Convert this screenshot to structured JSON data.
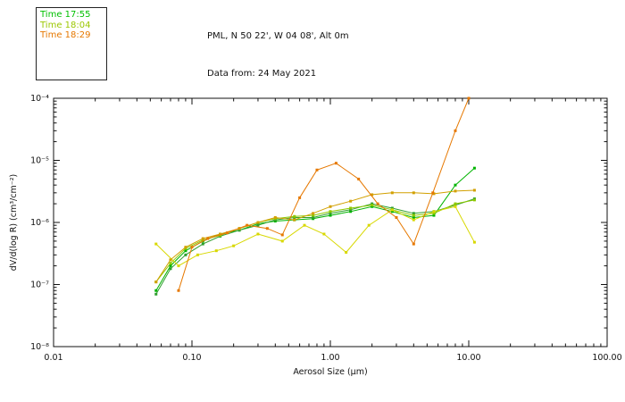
{
  "chart_data": {
    "type": "line",
    "title": "PML, N 50 22', W 04 08', Alt 0m",
    "subtitle": "Data from: 24 May 2021",
    "xlabel": "Aerosol Size (μm)",
    "ylabel": "dV/d(log R) (cm³/cm⁻²)",
    "x_scale": "log",
    "y_scale": "log",
    "xlim": [
      0.01,
      100
    ],
    "ylim": [
      1e-08,
      0.0001
    ],
    "grid": false,
    "legend_position": "top-left-outside",
    "x_ticks": {
      "values": [
        0.01,
        0.1,
        1.0,
        10.0,
        100.0
      ],
      "labels": [
        "0.01",
        "0.10",
        "1.00",
        "10.00",
        "100.00"
      ]
    },
    "y_ticks": {
      "values": [
        1e-08,
        1e-07,
        1e-06,
        1e-05,
        0.0001
      ],
      "labels": [
        "10⁻⁸",
        "10⁻⁷",
        "10⁻⁶",
        "10⁻⁵",
        "10⁻⁴"
      ]
    },
    "legend": [
      {
        "label": "Time 17:55",
        "color": "#00c000"
      },
      {
        "label": "Time 18:04",
        "color": "#9cc700"
      },
      {
        "label": "Time 18:29",
        "color": "#e67800"
      }
    ],
    "series": [
      {
        "name": "Time 17:55",
        "color": "#00b400",
        "points": [
          [
            0.055,
            8e-08
          ],
          [
            0.07,
            2e-07
          ],
          [
            0.09,
            3.5e-07
          ],
          [
            0.12,
            5e-07
          ],
          [
            0.16,
            6.5e-07
          ],
          [
            0.22,
            7.5e-07
          ],
          [
            0.3,
            9.5e-07
          ],
          [
            0.4,
            1.05e-06
          ],
          [
            0.55,
            1.1e-06
          ],
          [
            0.75,
            1.15e-06
          ],
          [
            1.0,
            1.3e-06
          ],
          [
            1.4,
            1.5e-06
          ],
          [
            2.0,
            1.8e-06
          ],
          [
            2.8,
            1.5e-06
          ],
          [
            4.0,
            1.2e-06
          ],
          [
            5.6,
            1.3e-06
          ],
          [
            8.0,
            4e-06
          ],
          [
            11.0,
            7.5e-06
          ]
        ]
      },
      {
        "name": "Time 17:55",
        "color": "#2e9e2e",
        "points": [
          [
            0.055,
            7e-08
          ],
          [
            0.07,
            1.8e-07
          ],
          [
            0.09,
            3e-07
          ],
          [
            0.12,
            4.5e-07
          ],
          [
            0.16,
            6e-07
          ],
          [
            0.22,
            7.5e-07
          ],
          [
            0.3,
            9e-07
          ],
          [
            0.4,
            1.1e-06
          ],
          [
            0.55,
            1.2e-06
          ],
          [
            0.75,
            1.2e-06
          ],
          [
            1.0,
            1.4e-06
          ],
          [
            1.4,
            1.6e-06
          ],
          [
            2.0,
            2e-06
          ],
          [
            2.8,
            1.7e-06
          ],
          [
            4.0,
            1.4e-06
          ],
          [
            5.6,
            1.5e-06
          ],
          [
            8.0,
            1.9e-06
          ],
          [
            11.0,
            2.4e-06
          ]
        ]
      },
      {
        "name": "Time 18:04",
        "color": "#8cc800",
        "points": [
          [
            0.055,
            1.1e-07
          ],
          [
            0.07,
            2.2e-07
          ],
          [
            0.09,
            3.8e-07
          ],
          [
            0.12,
            5.2e-07
          ],
          [
            0.16,
            6.2e-07
          ],
          [
            0.22,
            8e-07
          ],
          [
            0.3,
            1e-06
          ],
          [
            0.4,
            1.15e-06
          ],
          [
            0.55,
            1.25e-06
          ],
          [
            0.75,
            1.3e-06
          ],
          [
            1.0,
            1.5e-06
          ],
          [
            1.4,
            1.7e-06
          ],
          [
            2.0,
            1.9e-06
          ],
          [
            2.8,
            1.6e-06
          ],
          [
            4.0,
            1.3e-06
          ],
          [
            5.6,
            1.4e-06
          ],
          [
            8.0,
            2e-06
          ],
          [
            11.0,
            2.3e-06
          ]
        ]
      },
      {
        "name": "Time 18:04",
        "color": "#d8d800",
        "points": [
          [
            0.055,
            4.5e-07
          ],
          [
            0.08,
            2e-07
          ],
          [
            0.11,
            3e-07
          ],
          [
            0.15,
            3.5e-07
          ],
          [
            0.2,
            4.2e-07
          ],
          [
            0.3,
            6.5e-07
          ],
          [
            0.45,
            5e-07
          ],
          [
            0.65,
            9e-07
          ],
          [
            0.9,
            6.5e-07
          ],
          [
            1.3,
            3.3e-07
          ],
          [
            1.9,
            9e-07
          ],
          [
            2.8,
            1.6e-06
          ],
          [
            4.0,
            1.1e-06
          ],
          [
            5.6,
            1.5e-06
          ],
          [
            8.0,
            1.8e-06
          ],
          [
            11.0,
            4.8e-07
          ]
        ]
      },
      {
        "name": "Time 18:29",
        "color": "#d2a000",
        "points": [
          [
            0.055,
            1.1e-07
          ],
          [
            0.07,
            2.5e-07
          ],
          [
            0.09,
            4e-07
          ],
          [
            0.12,
            5.5e-07
          ],
          [
            0.16,
            6.5e-07
          ],
          [
            0.22,
            8e-07
          ],
          [
            0.3,
            1e-06
          ],
          [
            0.4,
            1.2e-06
          ],
          [
            0.55,
            1.1e-06
          ],
          [
            0.75,
            1.4e-06
          ],
          [
            1.0,
            1.8e-06
          ],
          [
            1.4,
            2.2e-06
          ],
          [
            2.0,
            2.8e-06
          ],
          [
            2.8,
            3e-06
          ],
          [
            4.0,
            3e-06
          ],
          [
            5.6,
            2.9e-06
          ],
          [
            8.0,
            3.2e-06
          ],
          [
            11.0,
            3.3e-06
          ]
        ]
      },
      {
        "name": "Time 18:29",
        "color": "#e67800",
        "points": [
          [
            0.08,
            8e-08
          ],
          [
            0.1,
            4e-07
          ],
          [
            0.13,
            5.5e-07
          ],
          [
            0.18,
            6.8e-07
          ],
          [
            0.25,
            9e-07
          ],
          [
            0.35,
            8e-07
          ],
          [
            0.45,
            6.3e-07
          ],
          [
            0.6,
            2.5e-06
          ],
          [
            0.8,
            7e-06
          ],
          [
            1.1,
            9e-06
          ],
          [
            1.6,
            5e-06
          ],
          [
            2.2,
            2e-06
          ],
          [
            3.0,
            1.2e-06
          ],
          [
            4.0,
            4.5e-07
          ],
          [
            5.5,
            3e-06
          ],
          [
            8.0,
            3e-05
          ],
          [
            10.0,
            0.0001
          ]
        ]
      }
    ]
  }
}
